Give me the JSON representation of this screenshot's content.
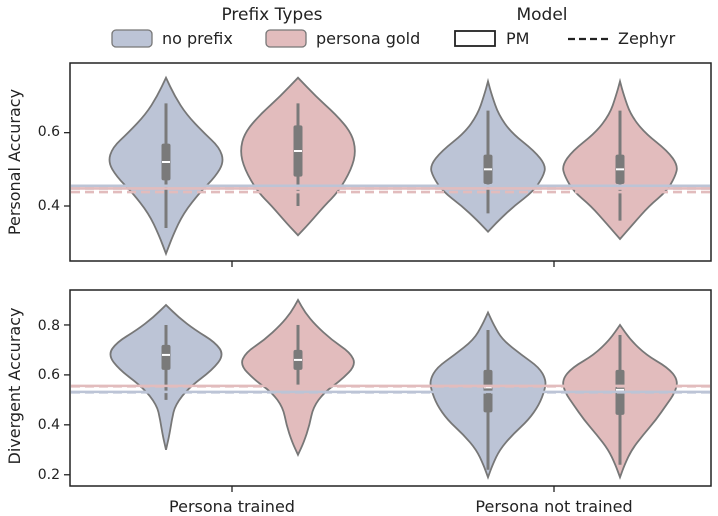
{
  "colors": {
    "no_prefix": "#bcc4d6",
    "persona_gold": "#e2bcbd",
    "outline": "#777777",
    "box": "#7a7a7a",
    "median": "#ffffff",
    "axis": "#222222"
  },
  "legend": {
    "prefix_title": "Prefix Types",
    "no_prefix": "no prefix",
    "persona_gold": "persona gold",
    "model_title": "Model",
    "pm": "PM",
    "zephyr": "Zephyr"
  },
  "chart_data": [
    {
      "type": "violin",
      "panel": "top",
      "title": "",
      "ylabel": "Personal Accuracy",
      "xlabel": "",
      "ylim": [
        0.25,
        0.79
      ],
      "yticks": [
        0.4,
        0.6
      ],
      "ytick_labels": [
        "0.4",
        "0.6"
      ],
      "categories": [
        "Persona trained",
        "Persona not trained"
      ],
      "series": [
        {
          "name": "no prefix",
          "violins": [
            {
              "category": "Persona trained",
              "min": 0.27,
              "max": 0.75,
              "q1": 0.47,
              "median": 0.52,
              "q3": 0.57,
              "whisker_low": 0.34,
              "whisker_high": 0.68,
              "profile": [
                [
                  0.27,
                  0.0
                ],
                [
                  0.32,
                  0.12
                ],
                [
                  0.38,
                  0.3
                ],
                [
                  0.44,
                  0.6
                ],
                [
                  0.48,
                  0.85
                ],
                [
                  0.52,
                  1.0
                ],
                [
                  0.56,
                  0.92
                ],
                [
                  0.6,
                  0.65
                ],
                [
                  0.65,
                  0.35
                ],
                [
                  0.7,
                  0.15
                ],
                [
                  0.75,
                  0.0
                ]
              ]
            },
            {
              "category": "Persona not trained",
              "min": 0.33,
              "max": 0.74,
              "q1": 0.46,
              "median": 0.5,
              "q3": 0.54,
              "whisker_low": 0.38,
              "whisker_high": 0.66,
              "profile": [
                [
                  0.33,
                  0.0
                ],
                [
                  0.36,
                  0.18
                ],
                [
                  0.4,
                  0.45
                ],
                [
                  0.44,
                  0.78
                ],
                [
                  0.48,
                  0.95
                ],
                [
                  0.51,
                  1.0
                ],
                [
                  0.55,
                  0.8
                ],
                [
                  0.6,
                  0.4
                ],
                [
                  0.65,
                  0.18
                ],
                [
                  0.7,
                  0.07
                ],
                [
                  0.74,
                  0.0
                ]
              ]
            }
          ]
        },
        {
          "name": "persona gold",
          "violins": [
            {
              "category": "Persona trained",
              "min": 0.32,
              "max": 0.75,
              "q1": 0.48,
              "median": 0.55,
              "q3": 0.62,
              "whisker_low": 0.4,
              "whisker_high": 0.68,
              "profile": [
                [
                  0.32,
                  0.0
                ],
                [
                  0.35,
                  0.18
                ],
                [
                  0.4,
                  0.45
                ],
                [
                  0.44,
                  0.7
                ],
                [
                  0.5,
                  0.92
                ],
                [
                  0.55,
                  1.0
                ],
                [
                  0.6,
                  0.92
                ],
                [
                  0.65,
                  0.65
                ],
                [
                  0.7,
                  0.3
                ],
                [
                  0.75,
                  0.0
                ]
              ]
            },
            {
              "category": "Persona not trained",
              "min": 0.31,
              "max": 0.74,
              "q1": 0.46,
              "median": 0.5,
              "q3": 0.54,
              "whisker_low": 0.36,
              "whisker_high": 0.66,
              "profile": [
                [
                  0.31,
                  0.0
                ],
                [
                  0.35,
                  0.22
                ],
                [
                  0.4,
                  0.5
                ],
                [
                  0.44,
                  0.8
                ],
                [
                  0.48,
                  0.95
                ],
                [
                  0.51,
                  1.0
                ],
                [
                  0.55,
                  0.82
                ],
                [
                  0.6,
                  0.42
                ],
                [
                  0.65,
                  0.18
                ],
                [
                  0.7,
                  0.07
                ],
                [
                  0.74,
                  0.0
                ]
              ]
            }
          ]
        }
      ],
      "reference_lines": [
        {
          "model": "PM",
          "series": "no prefix",
          "y": 0.455,
          "style": "solid"
        },
        {
          "model": "Zephyr",
          "series": "no prefix",
          "y": 0.448,
          "style": "dashed"
        },
        {
          "model": "PM",
          "series": "persona gold",
          "y": 0.448,
          "style": "solid"
        },
        {
          "model": "Zephyr",
          "series": "persona gold",
          "y": 0.438,
          "style": "dashed"
        }
      ]
    },
    {
      "type": "violin",
      "panel": "bottom",
      "title": "",
      "ylabel": "Divergent Accuracy",
      "xlabel": "",
      "ylim": [
        0.155,
        0.94
      ],
      "yticks": [
        0.2,
        0.4,
        0.6,
        0.8
      ],
      "ytick_labels": [
        "0.2",
        "0.4",
        "0.6",
        "0.8"
      ],
      "categories": [
        "Persona trained",
        "Persona not trained"
      ],
      "series": [
        {
          "name": "no prefix",
          "violins": [
            {
              "category": "Persona trained",
              "min": 0.3,
              "max": 0.88,
              "q1": 0.62,
              "median": 0.68,
              "q3": 0.72,
              "whisker_low": 0.5,
              "whisker_high": 0.8,
              "profile": [
                [
                  0.3,
                  0.0
                ],
                [
                  0.35,
                  0.05
                ],
                [
                  0.42,
                  0.1
                ],
                [
                  0.48,
                  0.16
                ],
                [
                  0.55,
                  0.4
                ],
                [
                  0.62,
                  0.8
                ],
                [
                  0.68,
                  1.0
                ],
                [
                  0.73,
                  0.85
                ],
                [
                  0.78,
                  0.5
                ],
                [
                  0.83,
                  0.22
                ],
                [
                  0.88,
                  0.0
                ]
              ]
            },
            {
              "category": "Persona not trained",
              "min": 0.19,
              "max": 0.85,
              "q1": 0.45,
              "median": 0.55,
              "q3": 0.62,
              "whisker_low": 0.22,
              "whisker_high": 0.78,
              "profile": [
                [
                  0.19,
                  0.0
                ],
                [
                  0.24,
                  0.08
                ],
                [
                  0.3,
                  0.2
                ],
                [
                  0.36,
                  0.42
                ],
                [
                  0.42,
                  0.7
                ],
                [
                  0.48,
                  0.88
                ],
                [
                  0.54,
                  0.98
                ],
                [
                  0.58,
                  1.0
                ],
                [
                  0.63,
                  0.88
                ],
                [
                  0.68,
                  0.58
                ],
                [
                  0.74,
                  0.25
                ],
                [
                  0.8,
                  0.1
                ],
                [
                  0.85,
                  0.0
                ]
              ]
            }
          ]
        },
        {
          "name": "persona gold",
          "violins": [
            {
              "category": "Persona trained",
              "min": 0.28,
              "max": 0.9,
              "q1": 0.62,
              "median": 0.66,
              "q3": 0.7,
              "whisker_low": 0.56,
              "whisker_high": 0.8,
              "profile": [
                [
                  0.28,
                  0.0
                ],
                [
                  0.33,
                  0.1
                ],
                [
                  0.4,
                  0.2
                ],
                [
                  0.47,
                  0.26
                ],
                [
                  0.53,
                  0.45
                ],
                [
                  0.58,
                  0.75
                ],
                [
                  0.64,
                  1.0
                ],
                [
                  0.69,
                  0.9
                ],
                [
                  0.74,
                  0.58
                ],
                [
                  0.8,
                  0.3
                ],
                [
                  0.85,
                  0.12
                ],
                [
                  0.9,
                  0.0
                ]
              ]
            },
            {
              "category": "Persona not trained",
              "min": 0.19,
              "max": 0.8,
              "q1": 0.44,
              "median": 0.54,
              "q3": 0.62,
              "whisker_low": 0.24,
              "whisker_high": 0.76,
              "profile": [
                [
                  0.19,
                  0.0
                ],
                [
                  0.24,
                  0.08
                ],
                [
                  0.3,
                  0.2
                ],
                [
                  0.36,
                  0.4
                ],
                [
                  0.42,
                  0.62
                ],
                [
                  0.48,
                  0.8
                ],
                [
                  0.53,
                  0.95
                ],
                [
                  0.58,
                  1.0
                ],
                [
                  0.63,
                  0.82
                ],
                [
                  0.68,
                  0.45
                ],
                [
                  0.74,
                  0.18
                ],
                [
                  0.8,
                  0.0
                ]
              ]
            }
          ]
        }
      ],
      "reference_lines": [
        {
          "model": "PM",
          "series": "no prefix",
          "y": 0.532,
          "style": "solid"
        },
        {
          "model": "Zephyr",
          "series": "no prefix",
          "y": 0.53,
          "style": "dashed"
        },
        {
          "model": "PM",
          "series": "persona gold",
          "y": 0.556,
          "style": "solid"
        },
        {
          "model": "Zephyr",
          "series": "persona gold",
          "y": 0.554,
          "style": "dashed"
        }
      ]
    }
  ]
}
